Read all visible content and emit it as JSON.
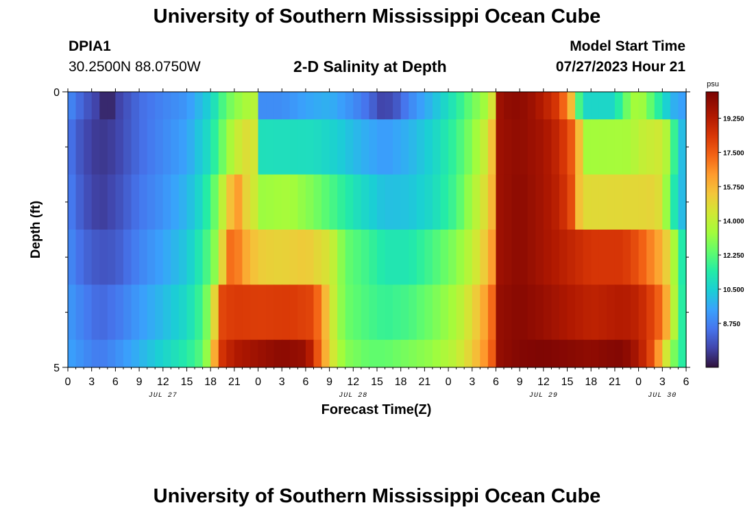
{
  "header": {
    "title": "University of Southern Mississippi Ocean Cube",
    "station_id": "DPIA1",
    "station_coords": "30.2500N  88.0750W",
    "plot_title": "2-D Salinity at Depth",
    "model_start_label": "Model Start Time",
    "model_start_value": "07/27/2023 Hour 21"
  },
  "footer": {
    "title": "University of Southern Mississippi Ocean Cube"
  },
  "chart_data": {
    "type": "heatmap",
    "title": "2-D Salinity at Depth",
    "xlabel": "Forecast Time(Z)",
    "ylabel": "Depth (ft)",
    "y_tick_labels": [
      "0",
      "5"
    ],
    "ylim": [
      0,
      5
    ],
    "xlim_hours": [
      0,
      78
    ],
    "x_tick_labels": [
      "0",
      "3",
      "6",
      "9",
      "12",
      "15",
      "18",
      "21",
      "0",
      "3",
      "6",
      "9",
      "12",
      "15",
      "18",
      "21",
      "0",
      "3",
      "6",
      "9",
      "12",
      "15",
      "18",
      "21",
      "0",
      "3",
      "6"
    ],
    "date_labels": [
      {
        "label": "JUL 27",
        "hour": 12
      },
      {
        "label": "JUL 28",
        "hour": 36
      },
      {
        "label": "JUL 29",
        "hour": 60
      },
      {
        "label": "JUL 30",
        "hour": 75
      }
    ],
    "colorbar": {
      "unit": "psu",
      "min": 6.5,
      "max": 20.6,
      "tick_values": [
        8.75,
        10.5,
        12.25,
        14.0,
        15.75,
        17.5,
        19.25
      ],
      "tick_labels": [
        "8.750",
        "10.500",
        "12.250",
        "14.000",
        "15.750",
        "17.500",
        "19.250"
      ]
    },
    "rows": [
      {
        "depth_range": [
          0.0,
          0.5
        ],
        "keyframes": [
          [
            0,
            9.0
          ],
          [
            2,
            8.0
          ],
          [
            4,
            7.3
          ],
          [
            5,
            6.6
          ],
          [
            6,
            7.3
          ],
          [
            9,
            8.3
          ],
          [
            12,
            8.8
          ],
          [
            15,
            9.2
          ],
          [
            18,
            10.6
          ],
          [
            20,
            12.5
          ],
          [
            22,
            13.4
          ],
          [
            23.5,
            13.8
          ],
          [
            24.5,
            9.0
          ],
          [
            27,
            9.0
          ],
          [
            30,
            9.5
          ],
          [
            33,
            9.8
          ],
          [
            36,
            9.0
          ],
          [
            38,
            8.3
          ],
          [
            39.5,
            7.5
          ],
          [
            41,
            7.6
          ],
          [
            43,
            8.8
          ],
          [
            46,
            10.0
          ],
          [
            49,
            11.4
          ],
          [
            51,
            12.6
          ],
          [
            53,
            13.6
          ],
          [
            54,
            15.5
          ],
          [
            54.5,
            19.8
          ],
          [
            56,
            20.2
          ],
          [
            58,
            20.0
          ],
          [
            60,
            19.2
          ],
          [
            62,
            18.2
          ],
          [
            63,
            16.5
          ],
          [
            64,
            14.8
          ],
          [
            64.5,
            12.0
          ],
          [
            65,
            10.7
          ],
          [
            69,
            10.7
          ],
          [
            70,
            12.2
          ],
          [
            72,
            13.8
          ],
          [
            73,
            12.8
          ],
          [
            74,
            12.0
          ],
          [
            75,
            11.0
          ],
          [
            76,
            10.0
          ],
          [
            77,
            9.5
          ],
          [
            78,
            9.4
          ]
        ]
      },
      {
        "depth_range": [
          0.5,
          1.5
        ],
        "keyframes": [
          [
            0,
            8.6
          ],
          [
            2,
            7.6
          ],
          [
            4,
            7.2
          ],
          [
            6,
            7.4
          ],
          [
            9,
            8.3
          ],
          [
            12,
            8.9
          ],
          [
            15,
            9.5
          ],
          [
            18,
            11.0
          ],
          [
            19.5,
            12.6
          ],
          [
            21,
            14.0
          ],
          [
            23,
            14.9
          ],
          [
            24,
            14.0
          ],
          [
            24.5,
            11.0
          ],
          [
            31,
            10.9
          ],
          [
            34,
            10.5
          ],
          [
            37,
            9.8
          ],
          [
            40,
            9.3
          ],
          [
            43,
            9.8
          ],
          [
            46,
            10.6
          ],
          [
            49,
            11.8
          ],
          [
            51,
            13.0
          ],
          [
            53,
            14.5
          ],
          [
            54,
            16.5
          ],
          [
            54.5,
            19.8
          ],
          [
            57,
            20.1
          ],
          [
            60,
            19.6
          ],
          [
            62,
            18.8
          ],
          [
            64,
            17.2
          ],
          [
            65,
            14.0
          ],
          [
            65.5,
            13.4
          ],
          [
            71,
            13.5
          ],
          [
            72,
            14.0
          ],
          [
            75,
            14.4
          ],
          [
            76,
            13.0
          ],
          [
            77,
            10.5
          ],
          [
            78,
            9.6
          ]
        ]
      },
      {
        "depth_range": [
          1.5,
          2.5
        ],
        "keyframes": [
          [
            0,
            8.8
          ],
          [
            2,
            7.8
          ],
          [
            4,
            7.3
          ],
          [
            6,
            7.6
          ],
          [
            9,
            8.5
          ],
          [
            12,
            9.1
          ],
          [
            15,
            9.9
          ],
          [
            17,
            10.9
          ],
          [
            18.5,
            12.5
          ],
          [
            19.5,
            14.0
          ],
          [
            20.5,
            15.5
          ],
          [
            21.5,
            16.3
          ],
          [
            22.5,
            15.0
          ],
          [
            24,
            14.0
          ],
          [
            24.5,
            13.3
          ],
          [
            28,
            13.5
          ],
          [
            31,
            12.8
          ],
          [
            34,
            11.8
          ],
          [
            37,
            10.8
          ],
          [
            40,
            10.1
          ],
          [
            43,
            10.2
          ],
          [
            46,
            10.8
          ],
          [
            49,
            12.0
          ],
          [
            51,
            13.5
          ],
          [
            53,
            15.0
          ],
          [
            54,
            16.5
          ],
          [
            54.5,
            19.8
          ],
          [
            57,
            20.2
          ],
          [
            60,
            19.6
          ],
          [
            62,
            19.0
          ],
          [
            64,
            17.5
          ],
          [
            64.5,
            15.5
          ],
          [
            65,
            14.8
          ],
          [
            72,
            14.9
          ],
          [
            74,
            15.0
          ],
          [
            75,
            14.5
          ],
          [
            76,
            12.0
          ],
          [
            77,
            10.5
          ],
          [
            78,
            9.5
          ]
        ]
      },
      {
        "depth_range": [
          2.5,
          3.5
        ],
        "keyframes": [
          [
            0,
            9.0
          ],
          [
            2,
            8.2
          ],
          [
            4,
            7.8
          ],
          [
            6,
            7.9
          ],
          [
            9,
            8.8
          ],
          [
            12,
            9.5
          ],
          [
            15,
            10.3
          ],
          [
            17,
            11.5
          ],
          [
            18.5,
            13.0
          ],
          [
            19.5,
            15.0
          ],
          [
            20,
            17.0
          ],
          [
            21,
            17.3
          ],
          [
            22.5,
            16.0
          ],
          [
            24,
            15.2
          ],
          [
            27,
            15.0
          ],
          [
            30,
            15.3
          ],
          [
            33,
            14.5
          ],
          [
            34,
            13.5
          ],
          [
            35,
            12.5
          ],
          [
            38,
            11.8
          ],
          [
            40,
            11.2
          ],
          [
            43,
            11.2
          ],
          [
            46,
            12.0
          ],
          [
            49,
            13.0
          ],
          [
            51,
            14.0
          ],
          [
            53,
            15.6
          ],
          [
            54,
            17.0
          ],
          [
            54.5,
            19.8
          ],
          [
            57,
            20.2
          ],
          [
            60,
            19.6
          ],
          [
            63,
            19.0
          ],
          [
            66,
            18.4
          ],
          [
            70,
            18.4
          ],
          [
            72,
            17.7
          ],
          [
            74,
            16.5
          ],
          [
            75,
            15.8
          ],
          [
            76,
            14.5
          ],
          [
            77,
            12.5
          ],
          [
            78,
            10.2
          ]
        ]
      },
      {
        "depth_range": [
          3.5,
          4.5
        ],
        "keyframes": [
          [
            0,
            9.3
          ],
          [
            2,
            8.7
          ],
          [
            4,
            8.2
          ],
          [
            6,
            8.5
          ],
          [
            9,
            9.3
          ],
          [
            12,
            10.0
          ],
          [
            15,
            10.8
          ],
          [
            17,
            12.0
          ],
          [
            18,
            13.5
          ],
          [
            18.8,
            15.8
          ],
          [
            19.5,
            18.0
          ],
          [
            21,
            18.3
          ],
          [
            24,
            18.2
          ],
          [
            28,
            18.3
          ],
          [
            31,
            18.0
          ],
          [
            32,
            16.6
          ],
          [
            33,
            14.8
          ],
          [
            34,
            13.5
          ],
          [
            35,
            12.6
          ],
          [
            38,
            12.0
          ],
          [
            40,
            11.7
          ],
          [
            43,
            12.0
          ],
          [
            46,
            12.7
          ],
          [
            49,
            13.6
          ],
          [
            51,
            14.8
          ],
          [
            53,
            16.5
          ],
          [
            54,
            18.0
          ],
          [
            54.5,
            20.0
          ],
          [
            57,
            20.3
          ],
          [
            60,
            19.9
          ],
          [
            63,
            19.4
          ],
          [
            66,
            19.0
          ],
          [
            70,
            19.3
          ],
          [
            72,
            19.0
          ],
          [
            74,
            17.9
          ],
          [
            75,
            17.0
          ],
          [
            76,
            15.0
          ],
          [
            77,
            12.5
          ],
          [
            78,
            10.5
          ]
        ]
      },
      {
        "depth_range": [
          4.5,
          5.0
        ],
        "keyframes": [
          [
            0,
            9.5
          ],
          [
            2,
            9.0
          ],
          [
            4,
            8.6
          ],
          [
            6,
            9.0
          ],
          [
            9,
            9.8
          ],
          [
            12,
            10.6
          ],
          [
            15,
            11.4
          ],
          [
            17,
            12.3
          ],
          [
            18,
            14.0
          ],
          [
            18.5,
            16.0
          ],
          [
            19.5,
            18.5
          ],
          [
            21,
            19.3
          ],
          [
            24,
            19.8
          ],
          [
            27,
            20.2
          ],
          [
            30,
            19.9
          ],
          [
            31,
            18.6
          ],
          [
            32,
            16.8
          ],
          [
            33,
            15.0
          ],
          [
            34,
            13.8
          ],
          [
            35,
            13.0
          ],
          [
            38,
            12.4
          ],
          [
            40,
            12.4
          ],
          [
            43,
            12.8
          ],
          [
            46,
            13.2
          ],
          [
            49,
            14.0
          ],
          [
            51,
            15.2
          ],
          [
            53,
            16.8
          ],
          [
            54,
            18.2
          ],
          [
            54.5,
            20.0
          ],
          [
            57,
            20.4
          ],
          [
            60,
            20.5
          ],
          [
            63,
            20.3
          ],
          [
            66,
            20.1
          ],
          [
            68,
            20.3
          ],
          [
            70,
            20.4
          ],
          [
            72,
            19.4
          ],
          [
            74,
            17.5
          ],
          [
            75,
            15.3
          ],
          [
            76,
            13.5
          ],
          [
            77,
            12.0
          ],
          [
            78,
            11.0
          ]
        ]
      }
    ]
  }
}
